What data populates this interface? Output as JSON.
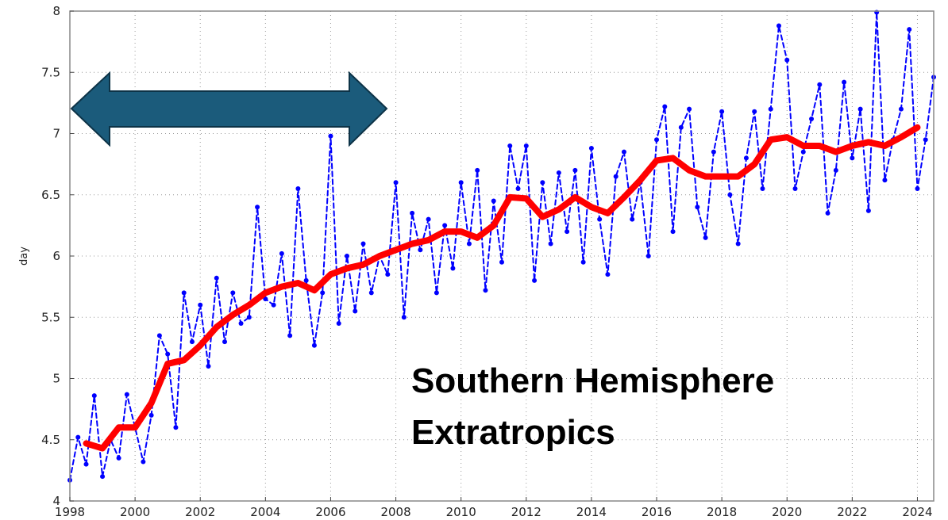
{
  "chart_data": {
    "type": "line",
    "y_label": "day",
    "annotation": [
      "Southern Hemisphere",
      "Extratropics"
    ],
    "xlim": [
      1998,
      2024.5
    ],
    "xticks": [
      1998,
      2000,
      2002,
      2004,
      2006,
      2008,
      2010,
      2012,
      2014,
      2016,
      2018,
      2020,
      2022,
      2024
    ],
    "ylim": [
      4,
      8
    ],
    "yticks": [
      4,
      4.5,
      5,
      5.5,
      6,
      6.5,
      7,
      7.5,
      8
    ],
    "grid": true,
    "series": [
      {
        "color": "#0000ff",
        "dashed": true,
        "markers": true,
        "x": [
          1998,
          1998.25,
          1998.5,
          1998.75,
          1999,
          1999.25,
          1999.5,
          1999.75,
          2000,
          2000.25,
          2000.5,
          2000.75,
          2001,
          2001.25,
          2001.5,
          2001.75,
          2002,
          2002.25,
          2002.5,
          2002.75,
          2003,
          2003.25,
          2003.5,
          2003.75,
          2004,
          2004.25,
          2004.5,
          2004.75,
          2005,
          2005.25,
          2005.5,
          2005.75,
          2006,
          2006.25,
          2006.5,
          2006.75,
          2007,
          2007.25,
          2007.5,
          2007.75,
          2008,
          2008.25,
          2008.5,
          2008.75,
          2009,
          2009.25,
          2009.5,
          2009.75,
          2010,
          2010.25,
          2010.5,
          2010.75,
          2011,
          2011.25,
          2011.5,
          2011.75,
          2012,
          2012.25,
          2012.5,
          2012.75,
          2013,
          2013.25,
          2013.5,
          2013.75,
          2014,
          2014.25,
          2014.5,
          2014.75,
          2015,
          2015.25,
          2015.5,
          2015.75,
          2016,
          2016.25,
          2016.5,
          2016.75,
          2017,
          2017.25,
          2017.5,
          2017.75,
          2018,
          2018.25,
          2018.5,
          2018.75,
          2019,
          2019.25,
          2019.5,
          2019.75,
          2020,
          2020.25,
          2020.5,
          2020.75,
          2021,
          2021.25,
          2021.5,
          2021.75,
          2022,
          2022.25,
          2022.5,
          2022.75,
          2023,
          2023.25,
          2023.5,
          2023.75,
          2024,
          2024.25,
          2024.5
        ],
        "values": [
          4.17,
          4.52,
          4.3,
          4.86,
          4.2,
          4.5,
          4.35,
          4.87,
          4.6,
          4.32,
          4.7,
          5.35,
          5.2,
          4.6,
          5.7,
          5.3,
          5.6,
          5.1,
          5.82,
          5.3,
          5.7,
          5.45,
          5.5,
          6.4,
          5.65,
          5.6,
          6.02,
          5.35,
          6.55,
          5.8,
          5.27,
          5.7,
          6.98,
          5.45,
          6.0,
          5.55,
          6.1,
          5.7,
          6.0,
          5.85,
          6.6,
          5.5,
          6.35,
          6.05,
          6.3,
          5.7,
          6.25,
          5.9,
          6.6,
          6.1,
          6.7,
          5.72,
          6.45,
          5.95,
          6.9,
          6.55,
          6.9,
          5.8,
          6.6,
          6.1,
          6.68,
          6.2,
          6.7,
          5.95,
          6.88,
          6.3,
          5.85,
          6.65,
          6.85,
          6.3,
          6.6,
          6.0,
          6.95,
          7.22,
          6.2,
          7.05,
          7.2,
          6.4,
          6.15,
          6.85,
          7.18,
          6.5,
          6.1,
          6.8,
          7.18,
          6.55,
          7.2,
          7.88,
          7.6,
          6.55,
          6.85,
          7.12,
          7.4,
          6.35,
          6.7,
          7.42,
          6.8,
          7.2,
          6.37,
          7.99,
          6.62,
          6.95,
          7.2,
          7.85,
          6.55,
          6.95,
          7.46
        ]
      },
      {
        "color": "#ff0000",
        "dashed": false,
        "markers": false,
        "x": [
          1998.5,
          1999,
          1999.5,
          2000,
          2000.5,
          2001,
          2001.5,
          2002,
          2002.5,
          2003,
          2003.5,
          2004,
          2004.5,
          2005,
          2005.5,
          2006,
          2006.5,
          2007,
          2007.5,
          2008,
          2008.5,
          2009,
          2009.5,
          2010,
          2010.5,
          2011,
          2011.5,
          2012,
          2012.5,
          2013,
          2013.5,
          2014,
          2014.5,
          2015,
          2015.5,
          2016,
          2016.5,
          2017,
          2017.5,
          2018,
          2018.5,
          2019,
          2019.5,
          2020,
          2020.5,
          2021,
          2021.5,
          2022,
          2022.5,
          2023,
          2023.5,
          2024
        ],
        "values": [
          4.47,
          4.43,
          4.6,
          4.6,
          4.8,
          5.12,
          5.15,
          5.27,
          5.42,
          5.52,
          5.6,
          5.7,
          5.75,
          5.78,
          5.72,
          5.85,
          5.9,
          5.93,
          6.0,
          6.05,
          6.1,
          6.13,
          6.2,
          6.2,
          6.15,
          6.25,
          6.48,
          6.47,
          6.32,
          6.38,
          6.48,
          6.4,
          6.35,
          6.48,
          6.62,
          6.78,
          6.8,
          6.7,
          6.65,
          6.65,
          6.65,
          6.75,
          6.95,
          6.97,
          6.9,
          6.9,
          6.85,
          6.9,
          6.93,
          6.9,
          6.97,
          7.05
        ]
      }
    ]
  }
}
